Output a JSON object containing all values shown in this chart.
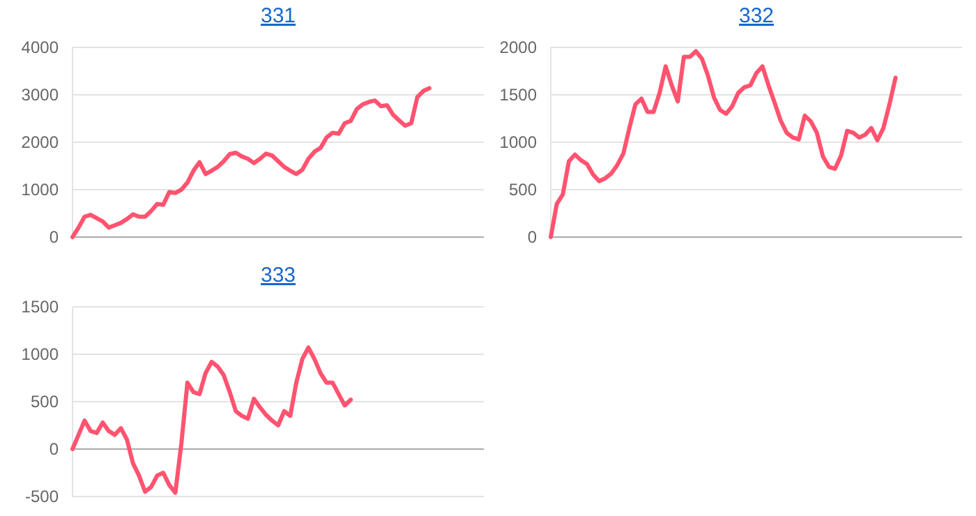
{
  "chart_data": [
    {
      "type": "line",
      "title": "331",
      "tick_labels": "y",
      "grid": "y",
      "ylim": [
        0,
        4000
      ],
      "yticks": [
        0,
        1000,
        2000,
        3000,
        4000
      ],
      "categories": [
        null,
        null,
        null,
        null,
        null,
        null,
        null,
        null,
        null,
        null,
        null,
        null,
        null,
        null,
        null,
        null,
        null,
        null,
        null,
        null,
        null,
        null,
        null,
        null,
        null,
        null,
        null,
        null,
        null,
        null,
        null,
        null,
        null,
        null,
        null,
        null,
        null,
        null,
        null,
        null,
        null,
        null,
        null,
        null,
        null,
        null,
        null,
        null,
        null,
        null,
        null,
        null,
        null,
        null,
        null,
        null,
        null,
        null,
        null,
        null,
        null,
        null,
        null,
        null,
        null,
        null,
        null,
        null,
        null
      ],
      "series": [
        {
          "color": "#ff5370",
          "values": [
            0,
            200,
            430,
            470,
            400,
            330,
            200,
            250,
            300,
            380,
            480,
            430,
            430,
            550,
            700,
            680,
            950,
            930,
            1000,
            1150,
            1400,
            1580,
            1330,
            1400,
            1480,
            1600,
            1750,
            1780,
            1700,
            1650,
            1560,
            1650,
            1760,
            1720,
            1600,
            1480,
            1400,
            1330,
            1420,
            1650,
            1800,
            1880,
            2100,
            2200,
            2180,
            2400,
            2450,
            2700,
            2800,
            2850,
            2880,
            2760,
            2780,
            2580,
            2460,
            2350,
            2400,
            2950,
            3080,
            3140,
            null,
            null,
            null,
            null,
            null,
            null,
            null,
            null,
            null
          ]
        }
      ]
    },
    {
      "type": "line",
      "title": "332",
      "tick_labels": "y",
      "grid": "y",
      "ylim": [
        0,
        2000
      ],
      "yticks": [
        0,
        500,
        1000,
        1500,
        2000
      ],
      "categories": [
        null,
        null,
        null,
        null,
        null,
        null,
        null,
        null,
        null,
        null,
        null,
        null,
        null,
        null,
        null,
        null,
        null,
        null,
        null,
        null,
        null,
        null,
        null,
        null,
        null,
        null,
        null,
        null,
        null,
        null,
        null,
        null,
        null,
        null,
        null,
        null,
        null,
        null,
        null,
        null,
        null,
        null,
        null,
        null,
        null,
        null,
        null,
        null,
        null,
        null,
        null,
        null,
        null,
        null,
        null,
        null,
        null,
        null,
        null,
        null,
        null,
        null,
        null,
        null,
        null,
        null,
        null,
        null,
        null
      ],
      "series": [
        {
          "color": "#ff5370",
          "values": [
            0,
            350,
            450,
            800,
            870,
            810,
            770,
            660,
            590,
            620,
            670,
            760,
            880,
            1150,
            1400,
            1460,
            1320,
            1320,
            1520,
            1800,
            1600,
            1430,
            1900,
            1900,
            1960,
            1880,
            1700,
            1470,
            1340,
            1300,
            1380,
            1520,
            1580,
            1600,
            1730,
            1800,
            1600,
            1420,
            1230,
            1100,
            1050,
            1030,
            1280,
            1220,
            1100,
            850,
            740,
            720,
            860,
            1120,
            1100,
            1050,
            1080,
            1150,
            1020,
            1150,
            1400,
            1680,
            null,
            null,
            null,
            null,
            null,
            null,
            null,
            null,
            null,
            null,
            null
          ]
        }
      ]
    },
    {
      "type": "line",
      "title": "333",
      "tick_labels": "y",
      "grid": "y",
      "ylim": [
        -500,
        1500
      ],
      "yticks": [
        -500,
        0,
        500,
        1000,
        1500
      ],
      "categories": [
        null,
        null,
        null,
        null,
        null,
        null,
        null,
        null,
        null,
        null,
        null,
        null,
        null,
        null,
        null,
        null,
        null,
        null,
        null,
        null,
        null,
        null,
        null,
        null,
        null,
        null,
        null,
        null,
        null,
        null,
        null,
        null,
        null,
        null,
        null,
        null,
        null,
        null,
        null,
        null,
        null,
        null,
        null,
        null,
        null,
        null,
        null,
        null,
        null,
        null,
        null,
        null,
        null,
        null,
        null,
        null,
        null,
        null,
        null,
        null,
        null,
        null,
        null,
        null,
        null,
        null,
        null,
        null,
        null
      ],
      "series": [
        {
          "color": "#ff5370",
          "values": [
            0,
            150,
            300,
            190,
            170,
            280,
            190,
            150,
            220,
            100,
            -150,
            -280,
            -450,
            -400,
            -280,
            -250,
            -380,
            -460,
            60,
            700,
            600,
            580,
            800,
            920,
            870,
            780,
            600,
            400,
            350,
            320,
            530,
            440,
            360,
            300,
            250,
            400,
            350,
            700,
            950,
            1070,
            950,
            800,
            700,
            700,
            580,
            460,
            520,
            null,
            null,
            null,
            null,
            null,
            null,
            null,
            null,
            null,
            null,
            null,
            null,
            null,
            null,
            null,
            null,
            null,
            null,
            null,
            null,
            null,
            null
          ]
        }
      ]
    }
  ]
}
